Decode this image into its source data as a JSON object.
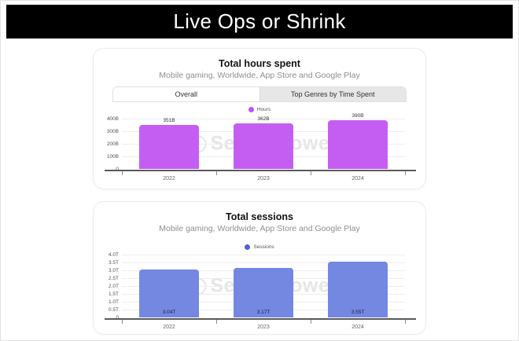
{
  "banner": {
    "title": "Live Ops or Shrink"
  },
  "watermark": {
    "label": "SensorTower"
  },
  "charts": [
    {
      "title": "Total hours spent",
      "subtitle": "Mobile gaming, Worldwide, App Store and Google Play",
      "tabs": [
        {
          "label": "Overall",
          "active": true
        },
        {
          "label": "Top Genres by Time Spent",
          "active": false
        }
      ],
      "legend": {
        "label": "Hours",
        "color": "#bc54f0"
      },
      "chart_data": {
        "type": "bar",
        "categories": [
          "2022",
          "2023",
          "2024"
        ],
        "values": [
          351,
          362,
          390
        ],
        "value_labels": [
          "351B",
          "362B",
          "390B"
        ],
        "value_label_position": "above",
        "title": "Total hours spent",
        "xlabel": "",
        "ylabel": "",
        "ylim": [
          0,
          400
        ],
        "yticks": [
          {
            "label": "400B",
            "value": 400
          },
          {
            "label": "300B",
            "value": 300
          },
          {
            "label": "200B",
            "value": 200
          },
          {
            "label": "100B",
            "value": 100
          },
          {
            "label": "0",
            "value": 0
          }
        ],
        "bar_color": "#c45ef2",
        "grid": true,
        "legend_position": "top"
      }
    },
    {
      "title": "Total sessions",
      "subtitle": "Mobile gaming, Worldwide, App Store and Google Play",
      "legend": {
        "label": "Sessions",
        "color": "#5161d2"
      },
      "chart_data": {
        "type": "bar",
        "categories": [
          "2022",
          "2023",
          "2024"
        ],
        "values": [
          3.04,
          3.17,
          3.55
        ],
        "value_labels": [
          "3.04T",
          "3.17T",
          "3.55T"
        ],
        "value_label_position": "inside-bottom",
        "title": "Total sessions",
        "xlabel": "",
        "ylabel": "",
        "ylim": [
          0,
          4.0
        ],
        "yticks": [
          {
            "label": "4.0T",
            "value": 4.0
          },
          {
            "label": "3.5T",
            "value": 3.5
          },
          {
            "label": "3.0T",
            "value": 3.0
          },
          {
            "label": "2.5T",
            "value": 2.5
          },
          {
            "label": "2.0T",
            "value": 2.0
          },
          {
            "label": "1.5T",
            "value": 1.5
          },
          {
            "label": "1.0T",
            "value": 1.0
          },
          {
            "label": "0.5T",
            "value": 0.5
          },
          {
            "label": "0",
            "value": 0
          }
        ],
        "bar_color": "#7487e1",
        "grid": true,
        "legend_position": "top"
      }
    }
  ]
}
